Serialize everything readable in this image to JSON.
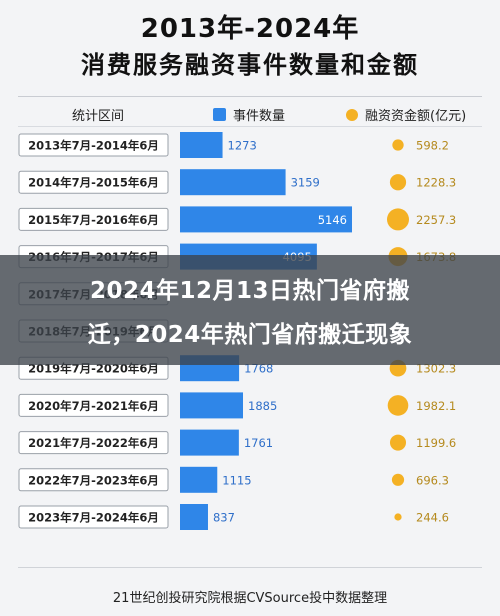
{
  "title_line1": "2013年-2024年",
  "title_line2": "消费服务融资事件数量和金额",
  "header": {
    "period": "统计区间",
    "count": "事件数量",
    "amount": "融资资金额(亿元)"
  },
  "banner": {
    "line1": "2024年12月13日热门省府搬",
    "line2": "迁，2024年热门省府搬迁现象"
  },
  "source": "21世纪创投研究院根据CVSource投中数据整理",
  "colors": {
    "bar": "#2f86e8",
    "dot": "#f4b124",
    "label_box_border": "#9aa0a8"
  },
  "chart_data": {
    "type": "bar",
    "categories": [
      "2013年7月-2014年6月",
      "2014年7月-2015年6月",
      "2015年7月-2016年6月",
      "2016年7月-2017年6月",
      "2017年7月-2018年6月",
      "2018年7月-2019年6月",
      "2019年7月-2020年6月",
      "2020年7月-2021年6月",
      "2021年7月-2022年6月",
      "2022年7月-2023年6月",
      "2023年7月-2024年6月"
    ],
    "series": [
      {
        "name": "事件数量",
        "values": [
          1273,
          3159,
          5146,
          4095,
          null,
          null,
          1768,
          1885,
          1761,
          1115,
          837
        ]
      },
      {
        "name": "融资资金额(亿元)",
        "values": [
          598.2,
          1228.3,
          2257.3,
          1673.8,
          null,
          null,
          1302.3,
          1982.1,
          1199.6,
          696.3,
          244.6
        ]
      }
    ],
    "count_labels": [
      "1273",
      "3159",
      "5146",
      "4095",
      "",
      "",
      "1768",
      "1885",
      "1761",
      "1115",
      "837"
    ],
    "amount_labels": [
      "598.2",
      "1228.3",
      "2257.3",
      "1673.8",
      "",
      "",
      "1302.3",
      "1982.1",
      "1199.6",
      "696.3",
      "244.6"
    ],
    "count_max": 5146,
    "amount_max": 2257.3
  }
}
